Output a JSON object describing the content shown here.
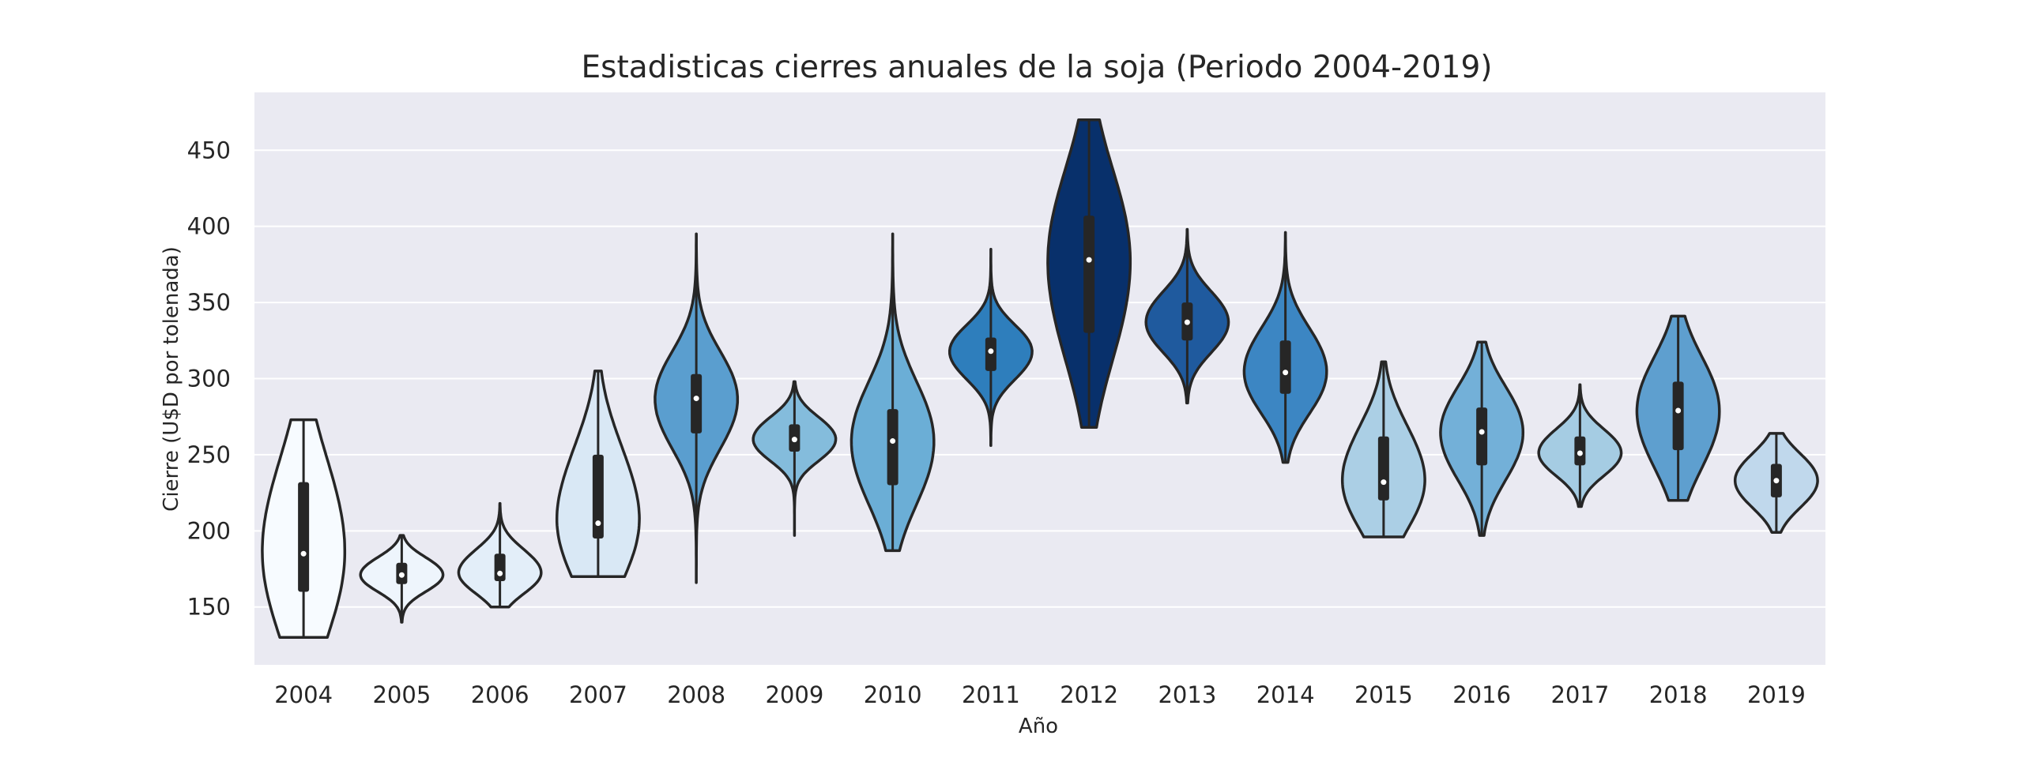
{
  "chart_data": {
    "type": "violin",
    "title": "Estadisticas cierres anuales de la soja (Periodo 2004-2019)",
    "xlabel": "Año",
    "ylabel": "Cierre (U$D por tolenada)",
    "ylim": [
      112,
      488
    ],
    "yticks": [
      150,
      200,
      250,
      300,
      350,
      400,
      450
    ],
    "grid": true,
    "background": "#EAEAF2",
    "categories": [
      "2004",
      "2005",
      "2006",
      "2007",
      "2008",
      "2009",
      "2010",
      "2011",
      "2012",
      "2013",
      "2014",
      "2015",
      "2016",
      "2017",
      "2018",
      "2019"
    ],
    "violins": [
      {
        "year": "2004",
        "min": 130,
        "q1": 160,
        "median": 185,
        "q3": 232,
        "max": 273,
        "color": "#F7FBFF"
      },
      {
        "year": "2005",
        "min": 140,
        "q1": 165,
        "median": 171,
        "q3": 179,
        "max": 197,
        "color": "#EEF5FC"
      },
      {
        "year": "2006",
        "min": 150,
        "q1": 167,
        "median": 172,
        "q3": 185,
        "max": 218,
        "color": "#E3EEF9"
      },
      {
        "year": "2007",
        "min": 170,
        "q1": 195,
        "median": 205,
        "q3": 250,
        "max": 305,
        "color": "#D9E8F5"
      },
      {
        "year": "2008",
        "min": 166,
        "q1": 264,
        "median": 287,
        "q3": 303,
        "max": 395,
        "color": "#5A9ECF"
      },
      {
        "year": "2009",
        "min": 197,
        "q1": 252,
        "median": 260,
        "q3": 270,
        "max": 298,
        "color": "#84BCDC"
      },
      {
        "year": "2010",
        "min": 187,
        "q1": 230,
        "median": 259,
        "q3": 280,
        "max": 395,
        "color": "#6BAED6"
      },
      {
        "year": "2011",
        "min": 256,
        "q1": 305,
        "median": 318,
        "q3": 327,
        "max": 385,
        "color": "#2E7EBC"
      },
      {
        "year": "2012",
        "min": 268,
        "q1": 330,
        "median": 378,
        "q3": 407,
        "max": 470,
        "color": "#08306B"
      },
      {
        "year": "2013",
        "min": 284,
        "q1": 325,
        "median": 337,
        "q3": 350,
        "max": 398,
        "color": "#1F5A9E"
      },
      {
        "year": "2014",
        "min": 245,
        "q1": 290,
        "median": 304,
        "q3": 325,
        "max": 396,
        "color": "#3C86C3"
      },
      {
        "year": "2015",
        "min": 196,
        "q1": 220,
        "median": 232,
        "q3": 262,
        "max": 311,
        "color": "#ABCFE5"
      },
      {
        "year": "2016",
        "min": 197,
        "q1": 243,
        "median": 265,
        "q3": 281,
        "max": 324,
        "color": "#73B0D8"
      },
      {
        "year": "2017",
        "min": 216,
        "q1": 243,
        "median": 251,
        "q3": 262,
        "max": 296,
        "color": "#A5CCE3"
      },
      {
        "year": "2018",
        "min": 220,
        "q1": 253,
        "median": 279,
        "q3": 298,
        "max": 341,
        "color": "#5E9FCF"
      },
      {
        "year": "2019",
        "min": 199,
        "q1": 222,
        "median": 233,
        "q3": 244,
        "max": 264,
        "color": "#C0D8EC"
      }
    ]
  }
}
